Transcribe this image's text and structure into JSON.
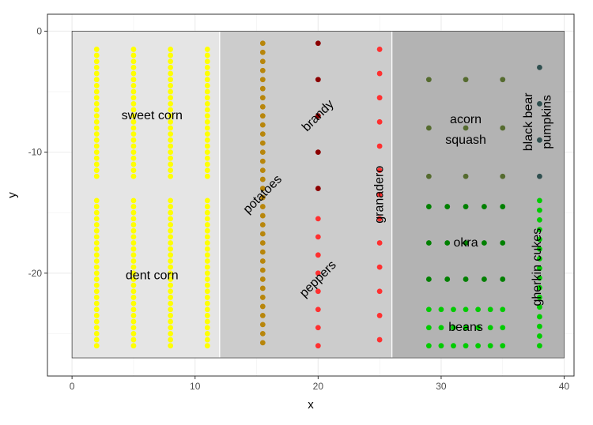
{
  "chart_data": {
    "type": "scatter",
    "title": "",
    "xlabel": "x",
    "ylabel": "y",
    "xlim": [
      -2,
      40.8
    ],
    "ylim": [
      -28.5,
      1.4
    ],
    "x_ticks": [
      0,
      10,
      20,
      30,
      40
    ],
    "y_ticks": [
      0,
      -10,
      -20
    ],
    "grid": true,
    "legend": "none",
    "regions": [
      {
        "xmin": 0,
        "xmax": 12,
        "ymin": -27,
        "ymax": 0,
        "fill": "#e5e5e5"
      },
      {
        "xmin": 12,
        "xmax": 26,
        "ymin": -27,
        "ymax": 0,
        "fill": "#cccccc"
      },
      {
        "xmin": 26,
        "xmax": 40,
        "ymin": -27,
        "ymax": 0,
        "fill": "#b3b3b3"
      }
    ],
    "labels": [
      {
        "text": "sweet corn",
        "x": 6.5,
        "y": -7,
        "angle": 0
      },
      {
        "text": "dent corn",
        "x": 6.5,
        "y": -20.2,
        "angle": 0
      },
      {
        "text": "potatoes",
        "x": 15.5,
        "y": -13.5,
        "angle": -45
      },
      {
        "text": "brandy",
        "x": 20,
        "y": -7,
        "angle": -45
      },
      {
        "text": "peppers",
        "x": 20,
        "y": -20.5,
        "angle": -45
      },
      {
        "text": "granadero",
        "x": 25,
        "y": -13.5,
        "angle": -90
      },
      {
        "text": "acorn",
        "x": 32,
        "y": -7.3,
        "angle": 0
      },
      {
        "text": "squash",
        "x": 32,
        "y": -9,
        "angle": 0
      },
      {
        "text": "black bear",
        "x": 37.1,
        "y": -7.5,
        "angle": -90
      },
      {
        "text": "pumpkins",
        "x": 38.6,
        "y": -7.5,
        "angle": -90
      },
      {
        "text": "okra",
        "x": 32,
        "y": -17.5,
        "angle": 0
      },
      {
        "text": "gherkin cukes",
        "x": 37.8,
        "y": -19.5,
        "angle": -90
      },
      {
        "text": "beans",
        "x": 32,
        "y": -24.5,
        "angle": 0
      }
    ],
    "series": [
      {
        "color": "#ffff00",
        "x_values": [
          2,
          5,
          8,
          11
        ],
        "y_start": -1.5,
        "y_end": -12,
        "y_step": 0.5
      },
      {
        "color": "#ffff00",
        "x_values": [
          2,
          5,
          8,
          11
        ],
        "y_start": -14,
        "y_end": -26,
        "y_step": 0.5
      },
      {
        "color": "#b8860b",
        "x_values": [
          15.5
        ],
        "y_start": -1,
        "y_end": -26,
        "y_step": 0.75
      },
      {
        "color": "#8b0000",
        "x_values": [
          20
        ],
        "y_start": -1,
        "y_end": -13,
        "y_step": 3
      },
      {
        "color": "#ff3030",
        "x_values": [
          20
        ],
        "y_start": -15.5,
        "y_end": -26,
        "y_step": 1.5
      },
      {
        "color": "#ff3030",
        "x_values": [
          25
        ],
        "y_start": -1.5,
        "y_end": -25.5,
        "y_step": 2
      },
      {
        "color": "#556b2f",
        "x_values": [
          29,
          32,
          35
        ],
        "y_start": -4,
        "y_end": -12,
        "y_step": 4
      },
      {
        "color": "#2f4f4f",
        "x_values": [
          38
        ],
        "y_start": -3,
        "y_end": -12,
        "y_step": 3
      },
      {
        "color": "#008000",
        "x_values": [
          29,
          30.5,
          32,
          33.5,
          35
        ],
        "y_start": -14.5,
        "y_end": -20.5,
        "y_step": 3
      },
      {
        "color": "#00cc00",
        "x_values": [
          38
        ],
        "y_start": -14,
        "y_end": -26,
        "y_step": 0.8
      },
      {
        "color": "#00cc00",
        "x_values": [
          29,
          30,
          31,
          32,
          33,
          34,
          35
        ],
        "y_start": -23,
        "y_end": -26,
        "y_step": 1.5
      }
    ]
  }
}
